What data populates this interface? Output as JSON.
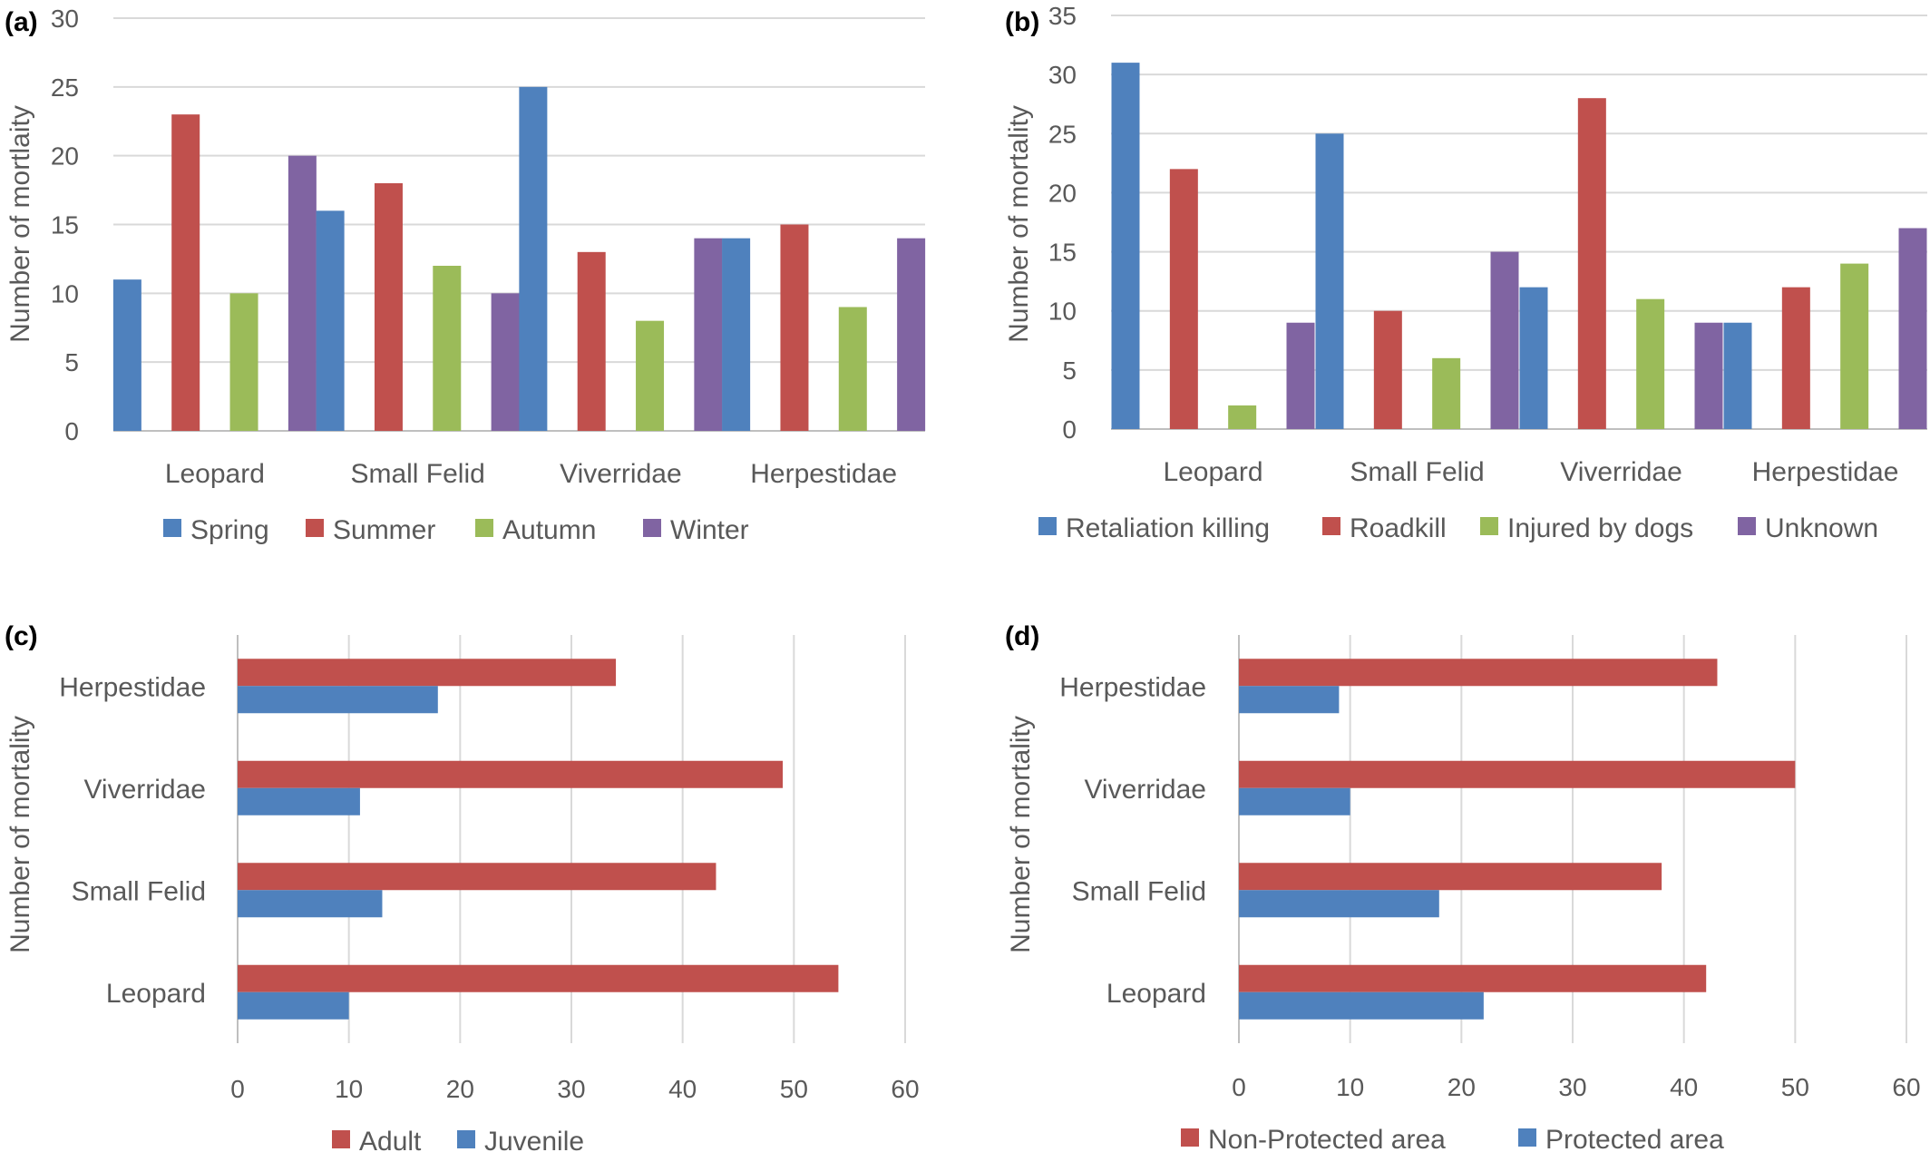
{
  "chart_data": [
    {
      "panel_label": "(a)",
      "type": "bar",
      "orientation": "vertical",
      "ylabel": "Number of mortlaity",
      "ylim": [
        0,
        30
      ],
      "yticks": [
        0,
        5,
        10,
        15,
        20,
        25,
        30
      ],
      "grid": true,
      "legend_position": "bottom",
      "categories": [
        "Leopard",
        "Small Felid",
        "Viverridae",
        "Herpestidae"
      ],
      "series": [
        {
          "name": "Spring",
          "color": "#4f81bd",
          "values": [
            11,
            16,
            25,
            14
          ]
        },
        {
          "name": "Summer",
          "color": "#c0504d",
          "values": [
            23,
            18,
            13,
            15
          ]
        },
        {
          "name": "Autumn",
          "color": "#9bbb59",
          "values": [
            10,
            12,
            8,
            9
          ]
        },
        {
          "name": "Winter",
          "color": "#8064a2",
          "values": [
            20,
            10,
            14,
            14
          ]
        }
      ]
    },
    {
      "panel_label": "(b)",
      "type": "bar",
      "orientation": "vertical",
      "ylabel": "Number of mortality",
      "ylim": [
        0,
        35
      ],
      "yticks": [
        0,
        5,
        10,
        15,
        20,
        25,
        30,
        35
      ],
      "grid": true,
      "legend_position": "bottom",
      "categories": [
        "Leopard",
        "Small Felid",
        "Viverridae",
        "Herpestidae"
      ],
      "series": [
        {
          "name": "Retaliation killing",
          "color": "#4f81bd",
          "values": [
            31,
            25,
            12,
            9
          ]
        },
        {
          "name": "Roadkill",
          "color": "#c0504d",
          "values": [
            22,
            10,
            28,
            12
          ]
        },
        {
          "name": "Injured by dogs",
          "color": "#9bbb59",
          "values": [
            2,
            6,
            11,
            14
          ]
        },
        {
          "name": "Unknown",
          "color": "#8064a2",
          "values": [
            9,
            15,
            9,
            17
          ]
        }
      ]
    },
    {
      "panel_label": "(c)",
      "type": "bar",
      "orientation": "horizontal",
      "ylabel": "Number of mortality",
      "xlim": [
        0,
        60
      ],
      "xticks": [
        0,
        10,
        20,
        30,
        40,
        50,
        60
      ],
      "grid": true,
      "legend_position": "bottom",
      "categories": [
        "Leopard",
        "Small Felid",
        "Viverridae",
        "Herpestidae"
      ],
      "series": [
        {
          "name": "Adult",
          "color": "#c0504d",
          "values": [
            54,
            43,
            49,
            34
          ]
        },
        {
          "name": "Juvenile",
          "color": "#4f81bd",
          "values": [
            10,
            13,
            11,
            18
          ]
        }
      ]
    },
    {
      "panel_label": "(d)",
      "type": "bar",
      "orientation": "horizontal",
      "ylabel": "Number of mortality",
      "xlim": [
        0,
        60
      ],
      "xticks": [
        0,
        10,
        20,
        30,
        40,
        50,
        60
      ],
      "grid": true,
      "legend_position": "bottom",
      "categories": [
        "Leopard",
        "Small Felid",
        "Viverridae",
        "Herpestidae"
      ],
      "series": [
        {
          "name": "Non-Protected area",
          "color": "#c0504d",
          "values": [
            42,
            38,
            50,
            43
          ]
        },
        {
          "name": "Protected area",
          "color": "#4f81bd",
          "values": [
            22,
            18,
            10,
            9
          ]
        }
      ]
    }
  ]
}
